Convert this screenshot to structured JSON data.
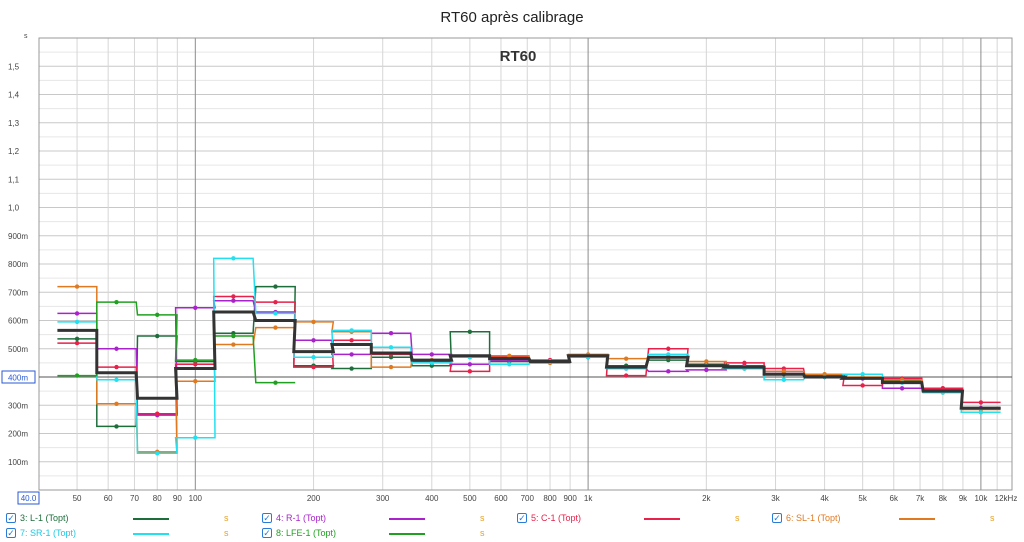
{
  "header": {
    "title": "RT60 après calibrage"
  },
  "chart_data": {
    "type": "line",
    "title": "RT60",
    "ylabel": "s",
    "xunit": "kHz",
    "xscale": "log",
    "xlim": [
      40,
      12000
    ],
    "ylim": [
      0,
      1.6
    ],
    "grid": true,
    "reference_line": {
      "y": 0.4,
      "label": "400m"
    },
    "x_start_label": "40.0",
    "ytick_labels": [
      {
        "v": 0.1,
        "t": "100m"
      },
      {
        "v": 0.2,
        "t": "200m"
      },
      {
        "v": 0.3,
        "t": "300m"
      },
      {
        "v": 0.5,
        "t": "500m"
      },
      {
        "v": 0.6,
        "t": "600m"
      },
      {
        "v": 0.7,
        "t": "700m"
      },
      {
        "v": 0.8,
        "t": "800m"
      },
      {
        "v": 0.9,
        "t": "900m"
      },
      {
        "v": 1.0,
        "t": "1,0"
      },
      {
        "v": 1.1,
        "t": "1,1"
      },
      {
        "v": 1.2,
        "t": "1,2"
      },
      {
        "v": 1.3,
        "t": "1,3"
      },
      {
        "v": 1.4,
        "t": "1,4"
      },
      {
        "v": 1.5,
        "t": "1,5"
      }
    ],
    "xtick_labels": [
      {
        "v": 50,
        "t": "50"
      },
      {
        "v": 60,
        "t": "60"
      },
      {
        "v": 70,
        "t": "70"
      },
      {
        "v": 80,
        "t": "80"
      },
      {
        "v": 90,
        "t": "90"
      },
      {
        "v": 100,
        "t": "100"
      },
      {
        "v": 200,
        "t": "200"
      },
      {
        "v": 300,
        "t": "300"
      },
      {
        "v": 400,
        "t": "400"
      },
      {
        "v": 500,
        "t": "500"
      },
      {
        "v": 600,
        "t": "600"
      },
      {
        "v": 700,
        "t": "700"
      },
      {
        "v": 800,
        "t": "800"
      },
      {
        "v": 900,
        "t": "900"
      },
      {
        "v": 1000,
        "t": "1k"
      },
      {
        "v": 2000,
        "t": "2k"
      },
      {
        "v": 3000,
        "t": "3k"
      },
      {
        "v": 4000,
        "t": "4k"
      },
      {
        "v": 5000,
        "t": "5k"
      },
      {
        "v": 6000,
        "t": "6k"
      },
      {
        "v": 7000,
        "t": "7k"
      },
      {
        "v": 8000,
        "t": "8k"
      },
      {
        "v": 9000,
        "t": "9k"
      },
      {
        "v": 10000,
        "t": "10k"
      },
      {
        "v": 12000,
        "t": "12kHz"
      }
    ],
    "bands": [
      50,
      63,
      80,
      100,
      125,
      160,
      200,
      250,
      315,
      400,
      500,
      630,
      800,
      1000,
      1250,
      1600,
      2000,
      2500,
      3150,
      4000,
      5000,
      6300,
      8000,
      10000
    ],
    "series": [
      {
        "name": "3: L-1 (Topt)",
        "color": "#1e6e3c",
        "values": [
          0.535,
          0.225,
          0.545,
          0.455,
          0.555,
          0.72,
          0.44,
          0.43,
          0.47,
          0.44,
          0.56,
          0.455,
          0.45,
          0.47,
          0.44,
          0.46,
          0.445,
          0.43,
          0.41,
          0.4,
          0.395,
          0.385,
          0.36,
          0.29
        ]
      },
      {
        "name": "4: R-1 (Topt)",
        "color": "#aa22cc",
        "values": [
          0.625,
          0.5,
          0.265,
          0.645,
          0.67,
          0.63,
          0.53,
          0.48,
          0.555,
          0.48,
          0.445,
          0.46,
          0.46,
          0.475,
          0.43,
          0.42,
          0.425,
          0.44,
          0.42,
          0.4,
          0.395,
          0.36,
          0.355,
          0.29
        ]
      },
      {
        "name": "5: C-1 (Topt)",
        "color": "#e8204a",
        "values": [
          0.52,
          0.435,
          0.27,
          0.445,
          0.685,
          0.665,
          0.435,
          0.53,
          0.48,
          0.455,
          0.42,
          0.47,
          0.46,
          0.47,
          0.405,
          0.5,
          0.44,
          0.45,
          0.43,
          0.405,
          0.37,
          0.395,
          0.36,
          0.31
        ]
      },
      {
        "name": "6: SL-1 (Topt)",
        "color": "#e07a20",
        "values": [
          0.72,
          0.305,
          0.135,
          0.385,
          0.515,
          0.575,
          0.595,
          0.56,
          0.435,
          0.46,
          0.47,
          0.475,
          0.45,
          0.48,
          0.465,
          0.47,
          0.455,
          0.435,
          0.42,
          0.41,
          0.4,
          0.39,
          0.345,
          0.285
        ]
      },
      {
        "name": "7: SR-1 (Topt)",
        "color": "#22e0f0",
        "values": [
          0.595,
          0.39,
          0.13,
          0.185,
          0.82,
          0.625,
          0.47,
          0.565,
          0.505,
          0.45,
          0.47,
          0.445,
          0.455,
          0.47,
          0.43,
          0.48,
          0.44,
          0.43,
          0.39,
          0.4,
          0.41,
          0.38,
          0.345,
          0.275
        ]
      },
      {
        "name": "8: LFE-1 (Topt)",
        "color": "#20a020",
        "values": [
          0.405,
          0.665,
          0.62,
          0.46,
          0.545,
          0.38,
          null,
          null,
          null,
          null,
          null,
          null,
          null,
          null,
          null,
          null,
          null,
          null,
          null,
          null,
          null,
          null,
          null,
          null
        ]
      }
    ],
    "average": {
      "color": "#333333",
      "values": [
        0.565,
        0.415,
        0.325,
        0.43,
        0.63,
        0.6,
        0.49,
        0.515,
        0.485,
        0.46,
        0.475,
        0.465,
        0.455,
        0.475,
        0.435,
        0.47,
        0.44,
        0.435,
        0.41,
        0.4,
        0.395,
        0.38,
        0.35,
        0.29
      ]
    }
  },
  "legend": {
    "unit_label": "s",
    "items": [
      {
        "label": "3: L-1 (Topt)",
        "color": "#1e6e3c"
      },
      {
        "label": "4: R-1 (Topt)",
        "color": "#aa22cc"
      },
      {
        "label": "5: C-1 (Topt)",
        "color": "#e8204a"
      },
      {
        "label": "6: SL-1 (Topt)",
        "color": "#e07a20"
      },
      {
        "label": "7: SR-1 (Topt)",
        "color": "#22e0f0"
      },
      {
        "label": "8: LFE-1 (Topt)",
        "color": "#20a020"
      }
    ]
  }
}
